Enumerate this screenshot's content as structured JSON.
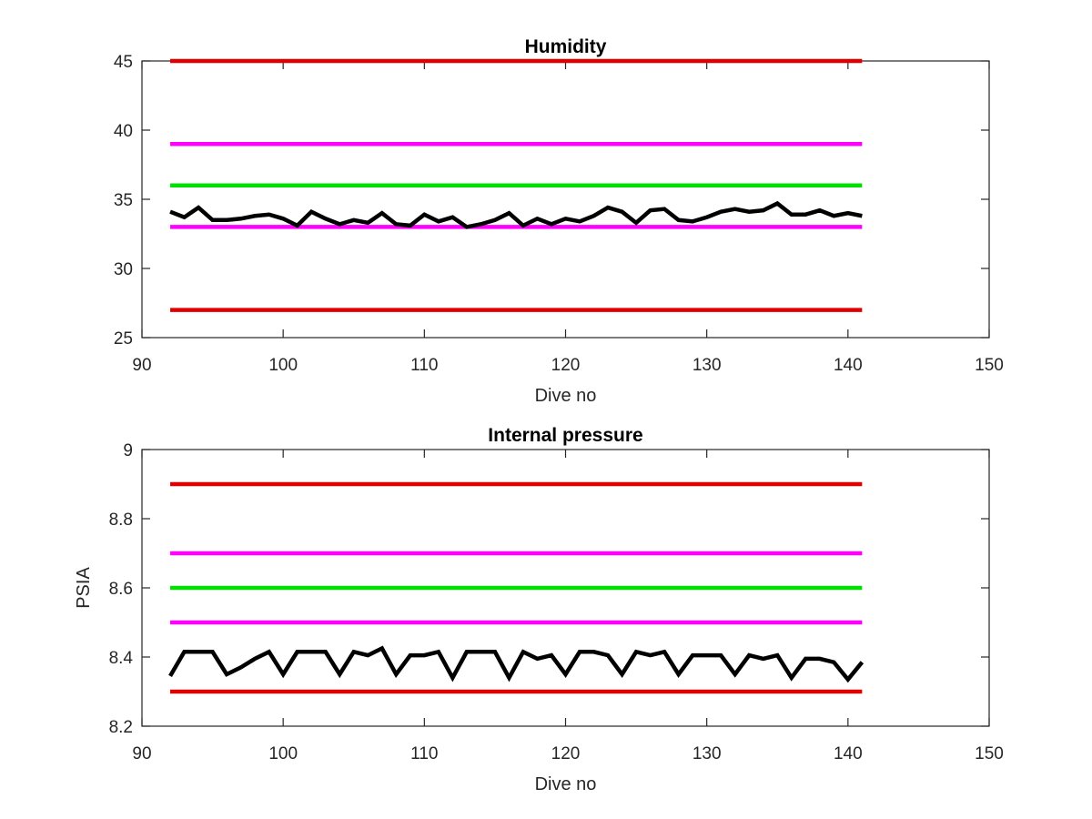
{
  "chart_data": [
    {
      "type": "line",
      "title": "Humidity",
      "xlabel": "Dive no",
      "ylabel": "",
      "xlim": [
        90,
        150
      ],
      "ylim": [
        25,
        45
      ],
      "xticks": [
        90,
        100,
        110,
        120,
        130,
        140,
        150
      ],
      "yticks": [
        25,
        30,
        35,
        40,
        45
      ],
      "grid": false,
      "reference_lines": [
        {
          "y": 45,
          "x": [
            92,
            141
          ],
          "color": "#e00000"
        },
        {
          "y": 39,
          "x": [
            92,
            141
          ],
          "color": "#ff00ff"
        },
        {
          "y": 36,
          "x": [
            92,
            141
          ],
          "color": "#00e000"
        },
        {
          "y": 33,
          "x": [
            92,
            141
          ],
          "color": "#ff00ff"
        },
        {
          "y": 27,
          "x": [
            92,
            141
          ],
          "color": "#e00000"
        }
      ],
      "series": [
        {
          "color": "#000000",
          "x": [
            92,
            93,
            94,
            95,
            96,
            97,
            98,
            99,
            100,
            101,
            102,
            103,
            104,
            105,
            106,
            107,
            108,
            109,
            110,
            111,
            112,
            113,
            114,
            115,
            116,
            117,
            118,
            119,
            120,
            121,
            122,
            123,
            124,
            125,
            126,
            127,
            128,
            129,
            130,
            131,
            132,
            133,
            134,
            135,
            136,
            137,
            138,
            139,
            140,
            141
          ],
          "values": [
            34.1,
            33.7,
            34.4,
            33.5,
            33.5,
            33.6,
            33.8,
            33.9,
            33.6,
            33.1,
            34.1,
            33.6,
            33.2,
            33.5,
            33.3,
            34.0,
            33.2,
            33.1,
            33.9,
            33.4,
            33.7,
            33.0,
            33.2,
            33.5,
            34.0,
            33.1,
            33.6,
            33.2,
            33.6,
            33.4,
            33.8,
            34.4,
            34.1,
            33.3,
            34.2,
            34.3,
            33.5,
            33.4,
            33.7,
            34.1,
            34.3,
            34.1,
            34.2,
            34.7,
            33.9,
            33.9,
            34.2,
            33.8,
            34.0,
            33.8
          ]
        }
      ]
    },
    {
      "type": "line",
      "title": "Internal pressure",
      "xlabel": "Dive no",
      "ylabel": "PSIA",
      "xlim": [
        90,
        150
      ],
      "ylim": [
        8.2,
        9
      ],
      "xticks": [
        90,
        100,
        110,
        120,
        130,
        140,
        150
      ],
      "yticks": [
        8.2,
        8.4,
        8.6,
        8.8,
        9
      ],
      "grid": false,
      "reference_lines": [
        {
          "y": 8.9,
          "x": [
            92,
            141
          ],
          "color": "#e00000"
        },
        {
          "y": 8.7,
          "x": [
            92,
            141
          ],
          "color": "#ff00ff"
        },
        {
          "y": 8.6,
          "x": [
            92,
            141
          ],
          "color": "#00e000"
        },
        {
          "y": 8.5,
          "x": [
            92,
            141
          ],
          "color": "#ff00ff"
        },
        {
          "y": 8.3,
          "x": [
            92,
            141
          ],
          "color": "#e00000"
        }
      ],
      "series": [
        {
          "color": "#000000",
          "x": [
            92,
            93,
            94,
            95,
            96,
            97,
            98,
            99,
            100,
            101,
            102,
            103,
            104,
            105,
            106,
            107,
            108,
            109,
            110,
            111,
            112,
            113,
            114,
            115,
            116,
            117,
            118,
            119,
            120,
            121,
            122,
            123,
            124,
            125,
            126,
            127,
            128,
            129,
            130,
            131,
            132,
            133,
            134,
            135,
            136,
            137,
            138,
            139,
            140,
            141
          ],
          "values": [
            8.345,
            8.415,
            8.415,
            8.415,
            8.35,
            8.37,
            8.395,
            8.415,
            8.35,
            8.415,
            8.415,
            8.415,
            8.35,
            8.415,
            8.405,
            8.425,
            8.35,
            8.405,
            8.405,
            8.415,
            8.34,
            8.415,
            8.415,
            8.415,
            8.34,
            8.415,
            8.395,
            8.405,
            8.35,
            8.415,
            8.415,
            8.405,
            8.35,
            8.415,
            8.405,
            8.415,
            8.35,
            8.405,
            8.405,
            8.405,
            8.35,
            8.405,
            8.395,
            8.405,
            8.34,
            8.395,
            8.395,
            8.385,
            8.335,
            8.385
          ]
        }
      ]
    }
  ]
}
